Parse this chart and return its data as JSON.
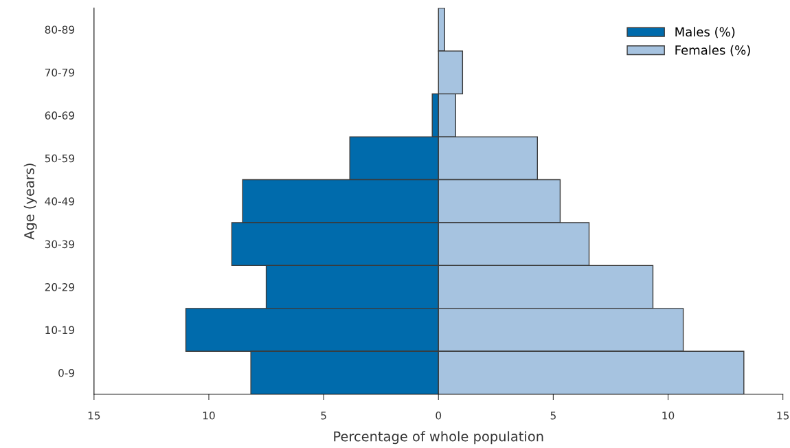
{
  "chart_data": {
    "type": "bar",
    "orientation": "horizontal",
    "stacked": true,
    "categories": [
      "80-89",
      "70-79",
      "60-69",
      "50-59",
      "40-49",
      "30-39",
      "20-29",
      "10-19",
      "0-9"
    ],
    "series": [
      {
        "name": "Males (%)",
        "color": "#006bac",
        "values": [
          null,
          null,
          -0.27,
          -3.86,
          -8.53,
          -9.0,
          -7.5,
          -11.0,
          -8.17
        ]
      },
      {
        "name": "Females (%)",
        "color": "#a6c3e0",
        "values": [
          0.27,
          1.05,
          0.75,
          4.31,
          5.3,
          6.56,
          9.34,
          10.66,
          13.3
        ]
      }
    ],
    "xlim": [
      -15,
      15
    ],
    "xticks": [
      {
        "value": -15,
        "label": "15"
      },
      {
        "value": -10,
        "label": "10"
      },
      {
        "value": -5,
        "label": "5"
      },
      0,
      5,
      10,
      15
    ],
    "xlabel": "Percentage of whole population",
    "ylabel": "Age (years)",
    "legend": "top right",
    "grid": false
  }
}
